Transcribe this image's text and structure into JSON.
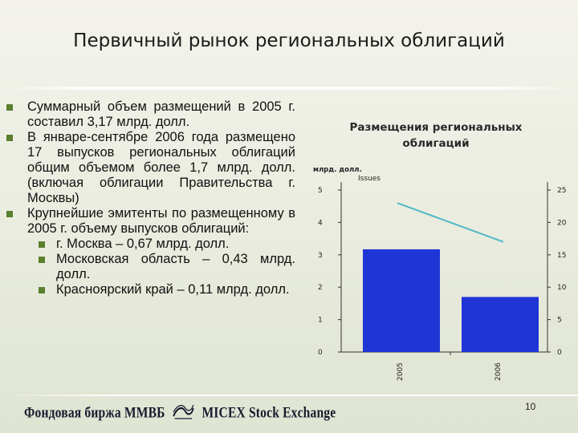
{
  "slide": {
    "title": "Первичный рынок региональных облигаций",
    "page_number": "10"
  },
  "bullets": [
    "Суммарный объем размещений в 2005 г. составил 3,17 млрд. долл.",
    "В январе-сентябре 2006 года размещено 17 выпусков региональных облигаций общим объемом более 1,7 млрд. долл. (включая облигации Правительства г. Москвы)",
    "Крупнейшие эмитенты по размещенному в 2005 г. объему выпусков облигаций:"
  ],
  "sub_bullets": [
    "г. Москва – 0,67 млрд. долл.",
    "Московская область – 0,43 млрд. долл.",
    "Красноярский край – 0,11 млрд. долл."
  ],
  "footer": {
    "logo_ru": "Фондовая биржа ММВБ",
    "logo_en": "MICEX Stock Exchange"
  },
  "colors": {
    "bar": "#1f35d6",
    "line": "#4fb8c8",
    "bullet": "#5a7f2e"
  },
  "chart_data": {
    "type": "bar",
    "title": "Размещения региональных облигаций",
    "categories": [
      "2005",
      "2006"
    ],
    "y_left_label": "млрд. долл.",
    "y_right_label": "Issues",
    "y_left_ticks": [
      "0",
      "1",
      "2",
      "3",
      "4",
      "5"
    ],
    "y_right_ticks": [
      "0",
      "5",
      "10",
      "15",
      "20",
      "25"
    ],
    "ylim_left": [
      0,
      5
    ],
    "ylim_right": [
      0,
      25
    ],
    "series": [
      {
        "type": "bar",
        "axis": "left",
        "values": [
          3.17,
          1.7
        ]
      },
      {
        "name": "Issues",
        "type": "line",
        "axis": "right",
        "values": [
          23,
          17
        ]
      }
    ],
    "grid": false
  }
}
